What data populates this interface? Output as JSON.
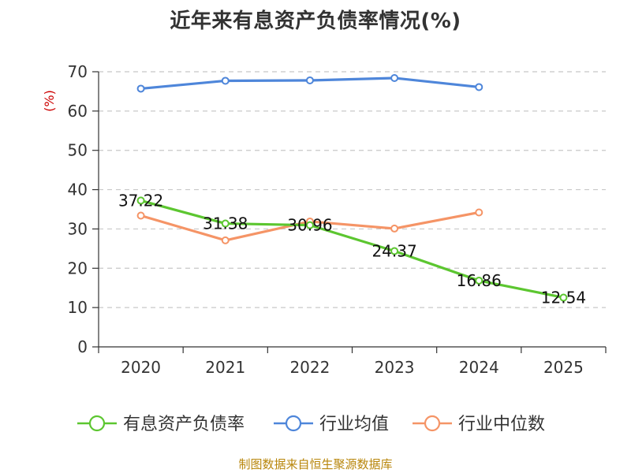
{
  "title": "近年来有息资产负债率情况(%)",
  "source": "制图数据来自恒生聚源数据库",
  "chart_data": {
    "type": "line",
    "title": "近年来有息资产负债率情况(%)",
    "ylabel": "(%)",
    "xlabel": "",
    "categories": [
      "2020",
      "2021",
      "2022",
      "2023",
      "2024",
      "2025"
    ],
    "ylim": [
      0,
      70
    ],
    "yticks": [
      0,
      10,
      20,
      30,
      40,
      50,
      60,
      70
    ],
    "grid": true,
    "legend_position": "bottom",
    "series": [
      {
        "name": "有息资产负债率",
        "color": "#5cc630",
        "values": [
          37.22,
          31.38,
          30.96,
          24.37,
          16.86,
          12.54
        ],
        "labels": [
          "37.22",
          "31.38",
          "30.96",
          "24.37",
          "16.86",
          "12.54"
        ]
      },
      {
        "name": "行业均值",
        "color": "#4e86da",
        "values": [
          65.7,
          67.7,
          67.8,
          68.4,
          66.1,
          null
        ]
      },
      {
        "name": "行业中位数",
        "color": "#f59466",
        "values": [
          33.4,
          27.1,
          31.9,
          30.1,
          34.2,
          null
        ]
      }
    ]
  }
}
